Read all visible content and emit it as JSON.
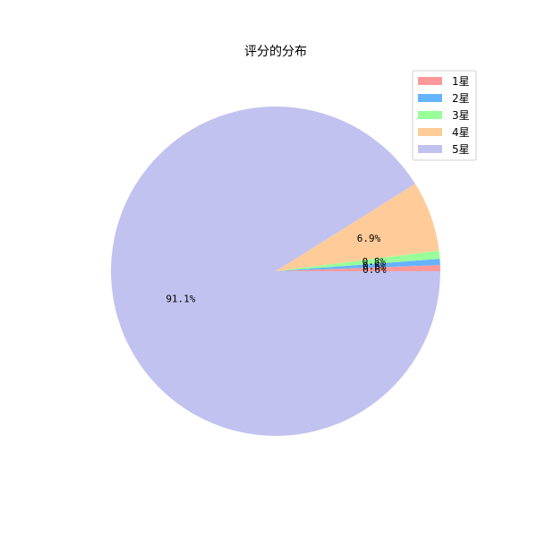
{
  "chart_data": {
    "type": "pie",
    "title": "评分的分布",
    "categories": [
      "1星",
      "2星",
      "3星",
      "4星",
      "5星"
    ],
    "values": [
      0.6,
      0.6,
      0.8,
      6.9,
      91.1
    ],
    "value_labels": [
      "0.6%",
      "0.6%",
      "0.8%",
      "6.9%",
      "91.1%"
    ],
    "colors": [
      "#ff9999",
      "#66b3ff",
      "#99ff99",
      "#ffcc99",
      "#c2c2f0"
    ],
    "start_angle_deg": 0,
    "direction": "counterclockwise",
    "legend": {
      "placement": "top-right",
      "entries": [
        "1星",
        "2星",
        "3星",
        "4星",
        "5星"
      ]
    }
  }
}
